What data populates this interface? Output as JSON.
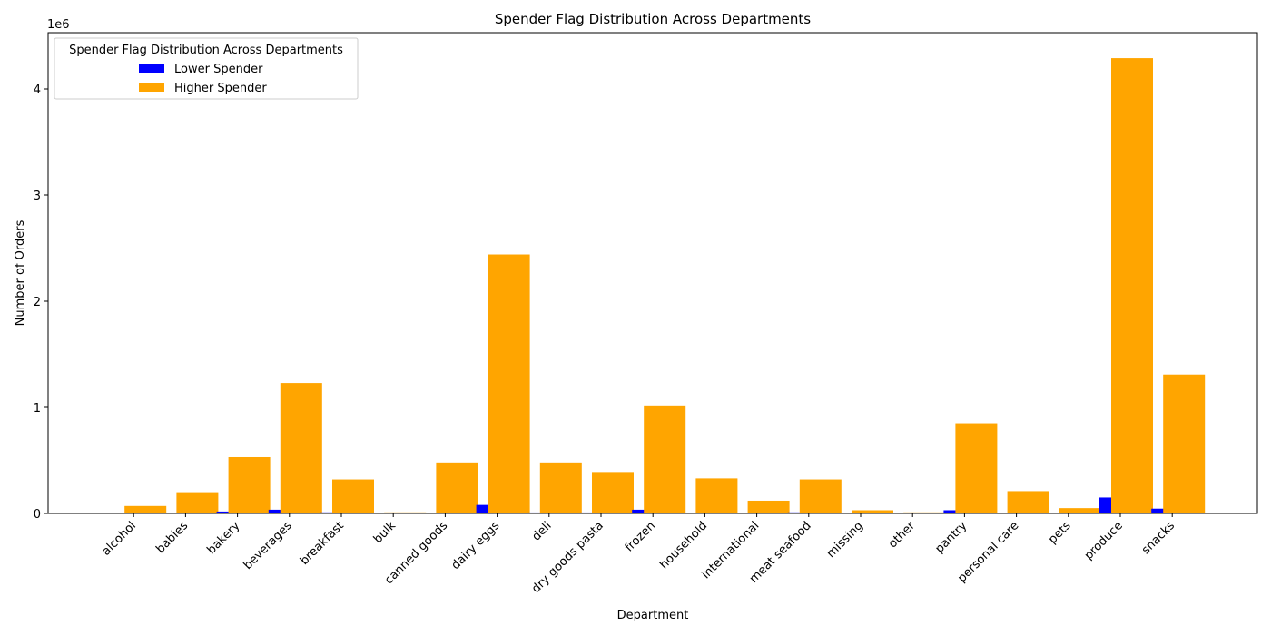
{
  "chart_data": {
    "type": "bar",
    "title": "Spender Flag Distribution Across Departments",
    "xlabel": "Department",
    "ylabel": "Number of Orders",
    "y_multiplier_label": "1e6",
    "ylim": [
      0,
      4.53
    ],
    "y_ticks": [
      0,
      1,
      2,
      3,
      4
    ],
    "grid": false,
    "legend": {
      "title": "Spender Flag Distribution Across Departments",
      "position": "top-left"
    },
    "categories": [
      "alcohol",
      "babies",
      "bakery",
      "beverages",
      "breakfast",
      "bulk",
      "canned goods",
      "dairy eggs",
      "deli",
      "dry goods pasta",
      "frozen",
      "household",
      "international",
      "meat seafood",
      "missing",
      "other",
      "pantry",
      "personal care",
      "pets",
      "produce",
      "snacks"
    ],
    "series": [
      {
        "name": "Lower Spender",
        "color": "#0000ff",
        "values": [
          0.001,
          0.004,
          0.018,
          0.035,
          0.01,
          0.001,
          0.008,
          0.08,
          0.009,
          0.009,
          0.035,
          0.007,
          0.002,
          0.01,
          0.001,
          0.001,
          0.03,
          0.002,
          0.004,
          0.15,
          0.045
        ]
      },
      {
        "name": "Higher Spender",
        "color": "#ffa500",
        "values": [
          0.07,
          0.2,
          0.53,
          1.23,
          0.32,
          0.01,
          0.48,
          2.44,
          0.48,
          0.39,
          1.01,
          0.33,
          0.12,
          0.32,
          0.03,
          0.01,
          0.85,
          0.21,
          0.05,
          4.29,
          1.31
        ]
      }
    ]
  }
}
